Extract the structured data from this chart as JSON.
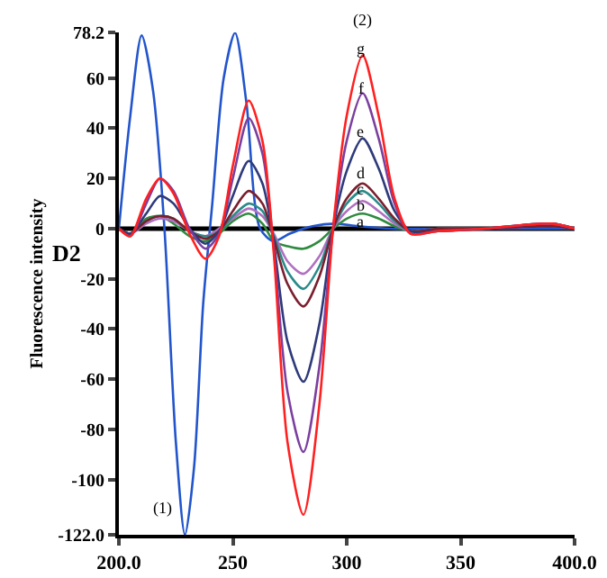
{
  "chart_data": {
    "type": "line",
    "ylabel": "Fluorescence intensity",
    "xlim": [
      200,
      400
    ],
    "ylim": [
      -122,
      78.2
    ],
    "xticks": [
      {
        "value": 200,
        "label": "200.0"
      },
      250,
      300,
      350,
      {
        "value": 400,
        "label": "400.0"
      }
    ],
    "yticks": [
      {
        "value": 78.2,
        "label": "78.2"
      },
      60,
      40,
      20,
      0,
      -20,
      -40,
      -60,
      -80,
      -100,
      {
        "value": -122,
        "label": "-122.0"
      }
    ],
    "grid": false,
    "line_style": "solid",
    "ref_lines": [
      {
        "axis": "y",
        "value": 0,
        "color": "#000000"
      }
    ],
    "series": [
      {
        "color": "#2255cc",
        "x": [
          200,
          205,
          210,
          215,
          220,
          225,
          229,
          233,
          237,
          241,
          246,
          251,
          256,
          262,
          268,
          275,
          285,
          295,
          305,
          320,
          340,
          400
        ],
        "values": [
          0,
          45,
          77,
          55,
          0,
          -85,
          -122,
          -95,
          -30,
          10,
          60,
          78,
          50,
          0,
          -5,
          -2,
          1,
          2,
          1,
          0,
          0,
          0
        ]
      },
      {
        "color": "#2f8a3f",
        "x": [
          200,
          205,
          212,
          218,
          224,
          231,
          238,
          244,
          250,
          257,
          263,
          268,
          274,
          281,
          288,
          294,
          300,
          307,
          314,
          321,
          328,
          340
        ],
        "values": [
          0,
          -2,
          4,
          5,
          2,
          -3,
          -5,
          -2,
          3,
          6,
          2,
          -5,
          -7,
          -8,
          -5,
          0,
          4,
          6,
          4,
          1,
          -1,
          0
        ]
      },
      {
        "color": "#b070c0",
        "x": [
          200,
          205,
          212,
          218,
          224,
          231,
          238,
          244,
          250,
          257,
          263,
          268,
          274,
          281,
          288,
          294,
          300,
          307,
          314,
          321,
          328,
          340,
          360,
          390,
          400
        ],
        "values": [
          0,
          -2,
          2,
          4,
          3,
          -1,
          -3,
          0,
          4,
          8,
          5,
          -2,
          -13,
          -18,
          -11,
          0,
          7,
          11,
          7,
          2,
          -1,
          0,
          0,
          1,
          0
        ]
      },
      {
        "color": "#2a8a8a",
        "x": [
          200,
          205,
          212,
          218,
          224,
          231,
          238,
          244,
          250,
          257,
          263,
          268,
          274,
          281,
          288,
          294,
          300,
          307,
          314,
          321,
          328,
          340,
          360
        ],
        "values": [
          0,
          -2,
          3,
          5,
          4,
          -1,
          -3,
          -1,
          5,
          10,
          7,
          -3,
          -17,
          -24,
          -15,
          0,
          10,
          15,
          10,
          3,
          -1,
          0,
          0
        ]
      },
      {
        "color": "#7a1f2e",
        "x": [
          200,
          205,
          212,
          218,
          224,
          231,
          238,
          244,
          250,
          257,
          263,
          268,
          274,
          281,
          288,
          294,
          300,
          307,
          314,
          321,
          328,
          340,
          360,
          390,
          400
        ],
        "values": [
          0,
          -2,
          3,
          5,
          4,
          -1,
          -4,
          -1,
          7,
          15,
          10,
          -4,
          -22,
          -31,
          -19,
          0,
          12,
          18,
          12,
          4,
          -1,
          0,
          0,
          1,
          0
        ]
      },
      {
        "color": "#2e3a7a",
        "x": [
          200,
          205,
          212,
          218,
          224,
          231,
          238,
          244,
          250,
          257,
          263,
          268,
          274,
          281,
          288,
          294,
          300,
          307,
          314,
          321,
          328,
          340,
          360,
          390,
          400
        ],
        "values": [
          0,
          -2,
          6,
          13,
          10,
          0,
          -6,
          -1,
          13,
          27,
          18,
          -6,
          -45,
          -61,
          -38,
          0,
          23,
          36,
          24,
          7,
          -1,
          -1,
          0,
          2,
          0
        ]
      },
      {
        "color": "#7b3f9e",
        "x": [
          200,
          205,
          212,
          218,
          224,
          231,
          238,
          244,
          250,
          257,
          263,
          268,
          274,
          281,
          288,
          294,
          300,
          307,
          314,
          321,
          328,
          340,
          360,
          390,
          400
        ],
        "values": [
          0,
          -3,
          10,
          20,
          15,
          0,
          -8,
          -2,
          20,
          44,
          30,
          -8,
          -65,
          -89,
          -55,
          0,
          35,
          54,
          36,
          10,
          -2,
          -1,
          0,
          2,
          0
        ]
      },
      {
        "color": "#ff2020",
        "x": [
          200,
          205,
          212,
          218,
          224,
          231,
          238,
          244,
          250,
          257,
          263,
          268,
          274,
          281,
          288,
          294,
          300,
          307,
          314,
          321,
          328,
          340,
          360,
          390,
          400
        ],
        "values": [
          0,
          -3,
          12,
          20,
          14,
          -2,
          -12,
          -3,
          25,
          51,
          35,
          -10,
          -85,
          -114,
          -70,
          0,
          45,
          69,
          45,
          12,
          -2,
          -1,
          0,
          2,
          0
        ]
      }
    ],
    "annotations": [
      "D2",
      "(1)",
      "(2)",
      "g",
      "f",
      "e",
      "d",
      "c",
      "b",
      "a"
    ]
  }
}
